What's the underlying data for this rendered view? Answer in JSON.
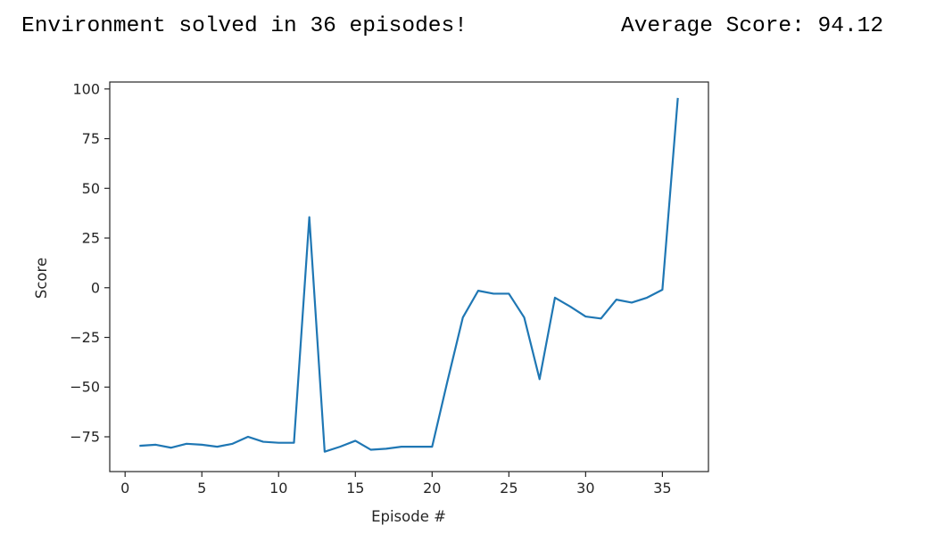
{
  "console": {
    "solved_message": "Environment solved in 36 episodes!",
    "average_message": "Average Score: 94.12"
  },
  "chart_data": {
    "type": "line",
    "title": "",
    "xlabel": "Episode #",
    "ylabel": "Score",
    "xlim": [
      -1,
      38
    ],
    "ylim": [
      -92.5,
      103.5
    ],
    "xticks": [
      0,
      5,
      10,
      15,
      20,
      25,
      30,
      35
    ],
    "yticks": [
      -75,
      -50,
      -25,
      0,
      25,
      50,
      75,
      100
    ],
    "ytick_labels": [
      "−75",
      "−50",
      "−25",
      "0",
      "25",
      "50",
      "75",
      "100"
    ],
    "grid": false,
    "legend": "none",
    "series": [
      {
        "color": "#1f77b4",
        "x": [
          1,
          2,
          3,
          4,
          5,
          6,
          7,
          8,
          9,
          10,
          11,
          12,
          13,
          14,
          15,
          16,
          17,
          18,
          19,
          20,
          21,
          22,
          23,
          24,
          25,
          26,
          27,
          28,
          29,
          30,
          31,
          32,
          33,
          34,
          35,
          36
        ],
        "y": [
          -79.5,
          -79,
          -80.5,
          -78.5,
          -79,
          -80,
          -78.5,
          -75,
          -77.5,
          -78,
          -78,
          35.5,
          -82.5,
          -80,
          -77,
          -81.5,
          -81,
          -80,
          -80,
          -80,
          -47,
          -15,
          -1.5,
          -3,
          -3,
          -15,
          -46,
          -5,
          -9.5,
          -14.5,
          -15.5,
          -6,
          -7.5,
          -5,
          -1,
          95
        ]
      }
    ]
  }
}
